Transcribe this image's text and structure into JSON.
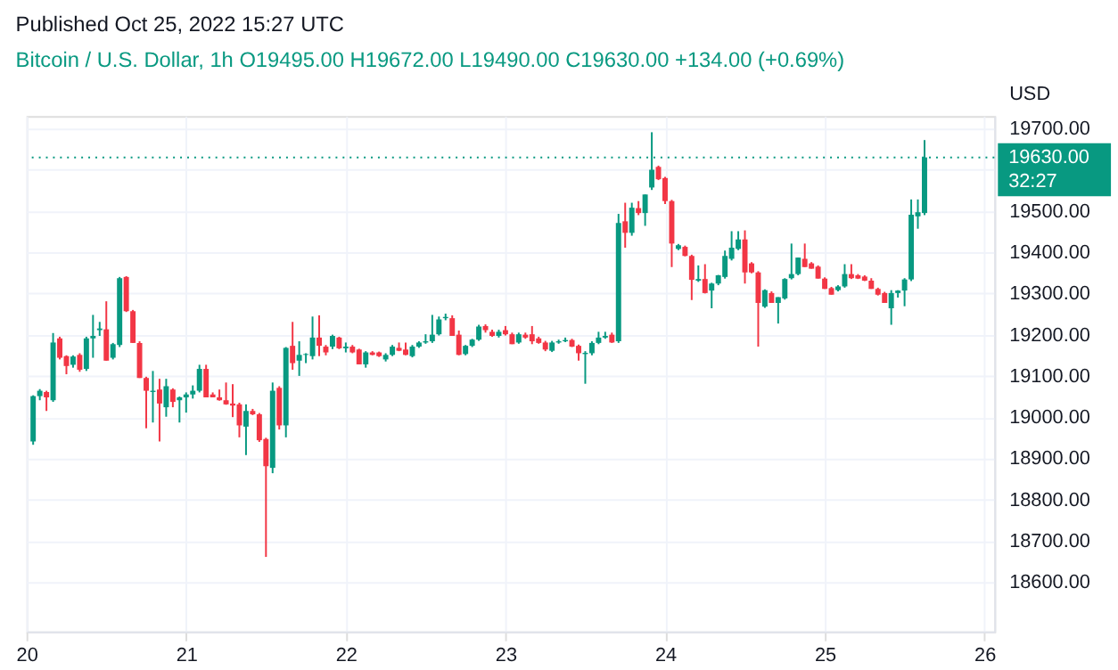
{
  "chart_data": {
    "type": "candlestick",
    "title": "Published Oct 25, 2022 15:27 UTC",
    "subtitle": "Bitcoin / U.S. Dollar, 1h",
    "annotations": [
      "O19495.00 H19672.00 L19490.00 C19630.00 +134.00 (+0.69%)",
      "32:27"
    ],
    "ylabel": "USD",
    "x": [
      "2022-10-20T01:00",
      "2022-10-20T02:00",
      "2022-10-20T03:00",
      "2022-10-20T04:00",
      "2022-10-20T05:00",
      "2022-10-20T06:00",
      "2022-10-20T07:00",
      "2022-10-20T08:00",
      "2022-10-20T09:00",
      "2022-10-20T10:00",
      "2022-10-20T11:00",
      "2022-10-20T12:00",
      "2022-10-20T13:00",
      "2022-10-20T14:00",
      "2022-10-20T15:00",
      "2022-10-20T16:00",
      "2022-10-20T17:00",
      "2022-10-20T18:00",
      "2022-10-20T19:00",
      "2022-10-20T20:00",
      "2022-10-20T21:00",
      "2022-10-20T22:00",
      "2022-10-20T23:00",
      "2022-10-21T00:00",
      "2022-10-21T01:00",
      "2022-10-21T02:00",
      "2022-10-21T03:00",
      "2022-10-21T04:00",
      "2022-10-21T05:00",
      "2022-10-21T06:00",
      "2022-10-21T07:00",
      "2022-10-21T08:00",
      "2022-10-21T09:00",
      "2022-10-21T10:00",
      "2022-10-21T11:00",
      "2022-10-21T12:00",
      "2022-10-21T13:00",
      "2022-10-21T14:00",
      "2022-10-21T15:00",
      "2022-10-21T16:00",
      "2022-10-21T17:00",
      "2022-10-21T18:00",
      "2022-10-21T19:00",
      "2022-10-21T20:00",
      "2022-10-21T21:00",
      "2022-10-21T22:00",
      "2022-10-21T23:00",
      "2022-10-22T00:00",
      "2022-10-22T01:00",
      "2022-10-22T02:00",
      "2022-10-22T03:00",
      "2022-10-22T04:00",
      "2022-10-22T05:00",
      "2022-10-22T06:00",
      "2022-10-22T07:00",
      "2022-10-22T08:00",
      "2022-10-22T09:00",
      "2022-10-22T10:00",
      "2022-10-22T11:00",
      "2022-10-22T12:00",
      "2022-10-22T13:00",
      "2022-10-22T14:00",
      "2022-10-22T15:00",
      "2022-10-22T16:00",
      "2022-10-22T17:00",
      "2022-10-22T18:00",
      "2022-10-22T19:00",
      "2022-10-22T20:00",
      "2022-10-22T21:00",
      "2022-10-22T22:00",
      "2022-10-22T23:00",
      "2022-10-23T00:00",
      "2022-10-23T01:00",
      "2022-10-23T02:00",
      "2022-10-23T03:00",
      "2022-10-23T04:00",
      "2022-10-23T05:00",
      "2022-10-23T06:00",
      "2022-10-23T07:00",
      "2022-10-23T08:00",
      "2022-10-23T09:00",
      "2022-10-23T10:00",
      "2022-10-23T11:00",
      "2022-10-23T12:00",
      "2022-10-23T13:00",
      "2022-10-23T14:00",
      "2022-10-23T15:00",
      "2022-10-23T16:00",
      "2022-10-23T17:00",
      "2022-10-23T18:00",
      "2022-10-23T19:00",
      "2022-10-23T20:00",
      "2022-10-23T21:00",
      "2022-10-23T22:00",
      "2022-10-23T23:00",
      "2022-10-24T00:00",
      "2022-10-24T01:00",
      "2022-10-24T02:00",
      "2022-10-24T03:00",
      "2022-10-24T04:00",
      "2022-10-24T05:00",
      "2022-10-24T06:00",
      "2022-10-24T07:00",
      "2022-10-24T08:00",
      "2022-10-24T09:00",
      "2022-10-24T10:00",
      "2022-10-24T11:00",
      "2022-10-24T12:00",
      "2022-10-24T13:00",
      "2022-10-24T14:00",
      "2022-10-24T15:00",
      "2022-10-24T16:00",
      "2022-10-24T17:00",
      "2022-10-24T18:00",
      "2022-10-24T19:00",
      "2022-10-24T20:00",
      "2022-10-24T21:00",
      "2022-10-24T22:00",
      "2022-10-24T23:00",
      "2022-10-25T00:00",
      "2022-10-25T01:00",
      "2022-10-25T02:00",
      "2022-10-25T03:00",
      "2022-10-25T04:00",
      "2022-10-25T05:00",
      "2022-10-25T06:00",
      "2022-10-25T07:00",
      "2022-10-25T08:00",
      "2022-10-25T09:00",
      "2022-10-25T10:00",
      "2022-10-25T11:00",
      "2022-10-25T12:00",
      "2022-10-25T13:00",
      "2022-10-25T14:00",
      "2022-10-25T15:00"
    ],
    "ohlc": [
      [
        18941,
        19053,
        18933,
        19051
      ],
      [
        19051,
        19068,
        19041,
        19064
      ],
      [
        19061,
        19064,
        19015,
        19048
      ],
      [
        19041,
        19204,
        19037,
        19181
      ],
      [
        19191,
        19195,
        19140,
        19144
      ],
      [
        19148,
        19150,
        19104,
        19124
      ],
      [
        19127,
        19150,
        19120,
        19147
      ],
      [
        19151,
        19155,
        19110,
        19115
      ],
      [
        19117,
        19195,
        19112,
        19191
      ],
      [
        19191,
        19248,
        19144,
        19197
      ],
      [
        19211,
        19231,
        19197,
        19215
      ],
      [
        19213,
        19281,
        19137,
        19137
      ],
      [
        19144,
        19180,
        19140,
        19177
      ],
      [
        19175,
        19340,
        19170,
        19337
      ],
      [
        19340,
        19342,
        19255,
        19257
      ],
      [
        19257,
        19260,
        19180,
        19180
      ],
      [
        19180,
        19184,
        19095,
        19095
      ],
      [
        19095,
        19098,
        18973,
        19064
      ],
      [
        19061,
        19112,
        18987,
        19064
      ],
      [
        19067,
        19093,
        18941,
        19033
      ],
      [
        19024,
        19093,
        19001,
        19075
      ],
      [
        19067,
        19070,
        19024,
        19037
      ],
      [
        19041,
        19050,
        18987,
        19048
      ],
      [
        19048,
        19060,
        19011,
        19055
      ],
      [
        19055,
        19077,
        19045,
        19064
      ],
      [
        19064,
        19127,
        19060,
        19117
      ],
      [
        19117,
        19127,
        19048,
        19048
      ],
      [
        19055,
        19060,
        19048,
        19048
      ],
      [
        19048,
        19067,
        19040,
        19041
      ],
      [
        19041,
        19084,
        19030,
        19031
      ],
      [
        19033,
        19080,
        19000,
        19028
      ],
      [
        19031,
        19035,
        18951,
        18980
      ],
      [
        18977,
        19031,
        18908,
        19015
      ],
      [
        19015,
        19020,
        19005,
        19007
      ],
      [
        19007,
        19010,
        18940,
        18944
      ],
      [
        18947,
        18950,
        18661,
        18881
      ],
      [
        18877,
        19084,
        18864,
        19064
      ],
      [
        19071,
        19075,
        18970,
        18980
      ],
      [
        18980,
        19170,
        18951,
        19168
      ],
      [
        19173,
        19231,
        19115,
        19131
      ],
      [
        19137,
        19184,
        19100,
        19151
      ],
      [
        19151,
        19155,
        19131,
        19153
      ],
      [
        19148,
        19244,
        19140,
        19193
      ],
      [
        19193,
        19247,
        19148,
        19173
      ],
      [
        19171,
        19175,
        19150,
        19157
      ],
      [
        19171,
        19200,
        19165,
        19197
      ],
      [
        19193,
        19195,
        19165,
        19167
      ],
      [
        19167,
        19181,
        19157,
        19171
      ],
      [
        19171,
        19175,
        19155,
        19157
      ],
      [
        19164,
        19166,
        19128,
        19128
      ],
      [
        19128,
        19160,
        19120,
        19157
      ],
      [
        19157,
        19160,
        19150,
        19151
      ],
      [
        19157,
        19159,
        19146,
        19148
      ],
      [
        19140,
        19155,
        19135,
        19151
      ],
      [
        19151,
        19175,
        19148,
        19171
      ],
      [
        19168,
        19181,
        19160,
        19161
      ],
      [
        19164,
        19181,
        19150,
        19151
      ],
      [
        19148,
        19175,
        19145,
        19171
      ],
      [
        19171,
        19184,
        19168,
        19181
      ],
      [
        19181,
        19201,
        19178,
        19184
      ],
      [
        19184,
        19248,
        19180,
        19200
      ],
      [
        19201,
        19244,
        19198,
        19237
      ],
      [
        19240,
        19251,
        19235,
        19243
      ],
      [
        19240,
        19247,
        19197,
        19197
      ],
      [
        19200,
        19210,
        19150,
        19151
      ],
      [
        19153,
        19175,
        19150,
        19173
      ],
      [
        19173,
        19190,
        19170,
        19188
      ],
      [
        19188,
        19224,
        19185,
        19220
      ],
      [
        19221,
        19225,
        19205,
        19211
      ],
      [
        19207,
        19212,
        19195,
        19197
      ],
      [
        19197,
        19212,
        19193,
        19207
      ],
      [
        19211,
        19221,
        19198,
        19201
      ],
      [
        19201,
        19205,
        19177,
        19177
      ],
      [
        19181,
        19205,
        19178,
        19201
      ],
      [
        19200,
        19205,
        19190,
        19193
      ],
      [
        19201,
        19221,
        19177,
        19184
      ],
      [
        19191,
        19195,
        19178,
        19180
      ],
      [
        19181,
        19185,
        19160,
        19164
      ],
      [
        19161,
        19185,
        19158,
        19181
      ],
      [
        19181,
        19188,
        19178,
        19184
      ],
      [
        19184,
        19193,
        19182,
        19187
      ],
      [
        19187,
        19190,
        19170,
        19171
      ],
      [
        19173,
        19176,
        19137,
        19155
      ],
      [
        19153,
        19160,
        19081,
        19156
      ],
      [
        19155,
        19184,
        19150,
        19180
      ],
      [
        19180,
        19207,
        19177,
        19193
      ],
      [
        19193,
        19207,
        19190,
        19197
      ],
      [
        19200,
        19205,
        19180,
        19181
      ],
      [
        19184,
        19493,
        19180,
        19471
      ],
      [
        19475,
        19520,
        19411,
        19447
      ],
      [
        19447,
        19520,
        19440,
        19508
      ],
      [
        19507,
        19524,
        19490,
        19495
      ],
      [
        19495,
        19540,
        19464,
        19540
      ],
      [
        19557,
        19691,
        19551,
        19600
      ],
      [
        19607,
        19610,
        19575,
        19577
      ],
      [
        19580,
        19583,
        19517,
        19524
      ],
      [
        19524,
        19527,
        19364,
        19421
      ],
      [
        19408,
        19420,
        19405,
        19417
      ],
      [
        19413,
        19416,
        19390,
        19391
      ],
      [
        19391,
        19394,
        19284,
        19333
      ],
      [
        19331,
        19368,
        19328,
        19335
      ],
      [
        19335,
        19371,
        19300,
        19301
      ],
      [
        19307,
        19326,
        19264,
        19324
      ],
      [
        19324,
        19345,
        19320,
        19344
      ],
      [
        19340,
        19404,
        19336,
        19391
      ],
      [
        19384,
        19451,
        19380,
        19411
      ],
      [
        19408,
        19451,
        19405,
        19431
      ],
      [
        19431,
        19453,
        19324,
        19351
      ],
      [
        19373,
        19376,
        19349,
        19351
      ],
      [
        19351,
        19354,
        19171,
        19277
      ],
      [
        19268,
        19310,
        19265,
        19308
      ],
      [
        19301,
        19305,
        19277,
        19277
      ],
      [
        19277,
        19291,
        19227,
        19291
      ],
      [
        19288,
        19337,
        19285,
        19335
      ],
      [
        19337,
        19421,
        19334,
        19347
      ],
      [
        19347,
        19387,
        19344,
        19387
      ],
      [
        19384,
        19421,
        19364,
        19364
      ],
      [
        19373,
        19376,
        19360,
        19360
      ],
      [
        19365,
        19368,
        19336,
        19336
      ],
      [
        19336,
        19339,
        19311,
        19311
      ],
      [
        19313,
        19316,
        19297,
        19297
      ],
      [
        19308,
        19320,
        19305,
        19317
      ],
      [
        19317,
        19371,
        19314,
        19347
      ],
      [
        19347,
        19371,
        19335,
        19337
      ],
      [
        19344,
        19347,
        19335,
        19336
      ],
      [
        19341,
        19344,
        19330,
        19331
      ],
      [
        19331,
        19337,
        19311,
        19311
      ],
      [
        19311,
        19314,
        19295,
        19297
      ],
      [
        19301,
        19304,
        19277,
        19277
      ],
      [
        19264,
        19308,
        19224,
        19301
      ],
      [
        19301,
        19308,
        19290,
        19307
      ],
      [
        19307,
        19337,
        19269,
        19334
      ],
      [
        19334,
        19528,
        19330,
        19491
      ],
      [
        19487,
        19528,
        19457,
        19497
      ],
      [
        19495,
        19672,
        19490,
        19630
      ]
    ],
    "colors": [
      "#089981",
      "#089981",
      "#f23645",
      "#089981",
      "#f23645",
      "#f23645",
      "#089981",
      "#f23645",
      "#089981",
      "#089981",
      "#089981",
      "#f23645",
      "#089981",
      "#089981",
      "#f23645",
      "#f23645",
      "#f23645",
      "#f23645",
      "#089981",
      "#f23645",
      "#089981",
      "#f23645",
      "#089981",
      "#089981",
      "#089981",
      "#089981",
      "#f23645",
      "#f23645",
      "#f23645",
      "#f23645",
      "#f23645",
      "#f23645",
      "#089981",
      "#f23645",
      "#f23645",
      "#f23645",
      "#089981",
      "#f23645",
      "#089981",
      "#f23645",
      "#089981",
      "#089981",
      "#089981",
      "#f23645",
      "#f23645",
      "#089981",
      "#f23645",
      "#089981",
      "#f23645",
      "#f23645",
      "#089981",
      "#f23645",
      "#f23645",
      "#089981",
      "#089981",
      "#f23645",
      "#f23645",
      "#089981",
      "#089981",
      "#089981",
      "#089981",
      "#089981",
      "#089981",
      "#f23645",
      "#f23645",
      "#089981",
      "#089981",
      "#089981",
      "#f23645",
      "#f23645",
      "#089981",
      "#f23645",
      "#f23645",
      "#089981",
      "#f23645",
      "#f23645",
      "#f23645",
      "#f23645",
      "#089981",
      "#089981",
      "#089981",
      "#f23645",
      "#f23645",
      "#089981",
      "#089981",
      "#089981",
      "#089981",
      "#f23645",
      "#089981",
      "#f23645",
      "#089981",
      "#f23645",
      "#089981",
      "#089981",
      "#f23645",
      "#f23645",
      "#f23645",
      "#089981",
      "#f23645",
      "#f23645",
      "#089981",
      "#f23645",
      "#089981",
      "#089981",
      "#089981",
      "#089981",
      "#089981",
      "#f23645",
      "#f23645",
      "#f23645",
      "#089981",
      "#f23645",
      "#089981",
      "#089981",
      "#089981",
      "#089981",
      "#f23645",
      "#f23645",
      "#f23645",
      "#f23645",
      "#f23645",
      "#089981",
      "#089981",
      "#f23645",
      "#f23645",
      "#f23645",
      "#f23645",
      "#f23645",
      "#f23645",
      "#089981",
      "#089981",
      "#089981",
      "#089981",
      "#089981",
      "#089981"
    ],
    "xlim": [
      "2022-10-20T00:00",
      "2022-10-26T01:30"
    ],
    "xticks": [
      {
        "value": "2022-10-20T00:00",
        "label": "20"
      },
      {
        "value": "2022-10-21T00:00",
        "label": "21"
      },
      {
        "value": "2022-10-22T00:00",
        "label": "22"
      },
      {
        "value": "2022-10-23T00:00",
        "label": "23"
      },
      {
        "value": "2022-10-24T00:00",
        "label": "24"
      },
      {
        "value": "2022-10-25T00:00",
        "label": "25"
      },
      {
        "value": "2022-10-26T00:00",
        "label": "26"
      }
    ],
    "ylim": [
      18480,
      19730
    ],
    "yticks": [
      {
        "value": 18600,
        "label": "18600.00"
      },
      {
        "value": 18700,
        "label": "18700.00"
      },
      {
        "value": 18800,
        "label": "18800.00"
      },
      {
        "value": 18900,
        "label": "18900.00"
      },
      {
        "value": 19000,
        "label": "19000.00"
      },
      {
        "value": 19100,
        "label": "19100.00"
      },
      {
        "value": 19200,
        "label": "19200.00"
      },
      {
        "value": 19300,
        "label": "19300.00"
      },
      {
        "value": 19400,
        "label": "19400.00"
      },
      {
        "value": 19500,
        "label": "19500.00"
      },
      {
        "value": 19600,
        "label": null
      },
      {
        "value": 19700,
        "label": "19700.00"
      }
    ],
    "ref_lines": [
      {
        "axis": "y",
        "value": 19630,
        "label": "19630.00",
        "color": "#089981",
        "line_style": "dotted"
      }
    ],
    "grid": true
  }
}
